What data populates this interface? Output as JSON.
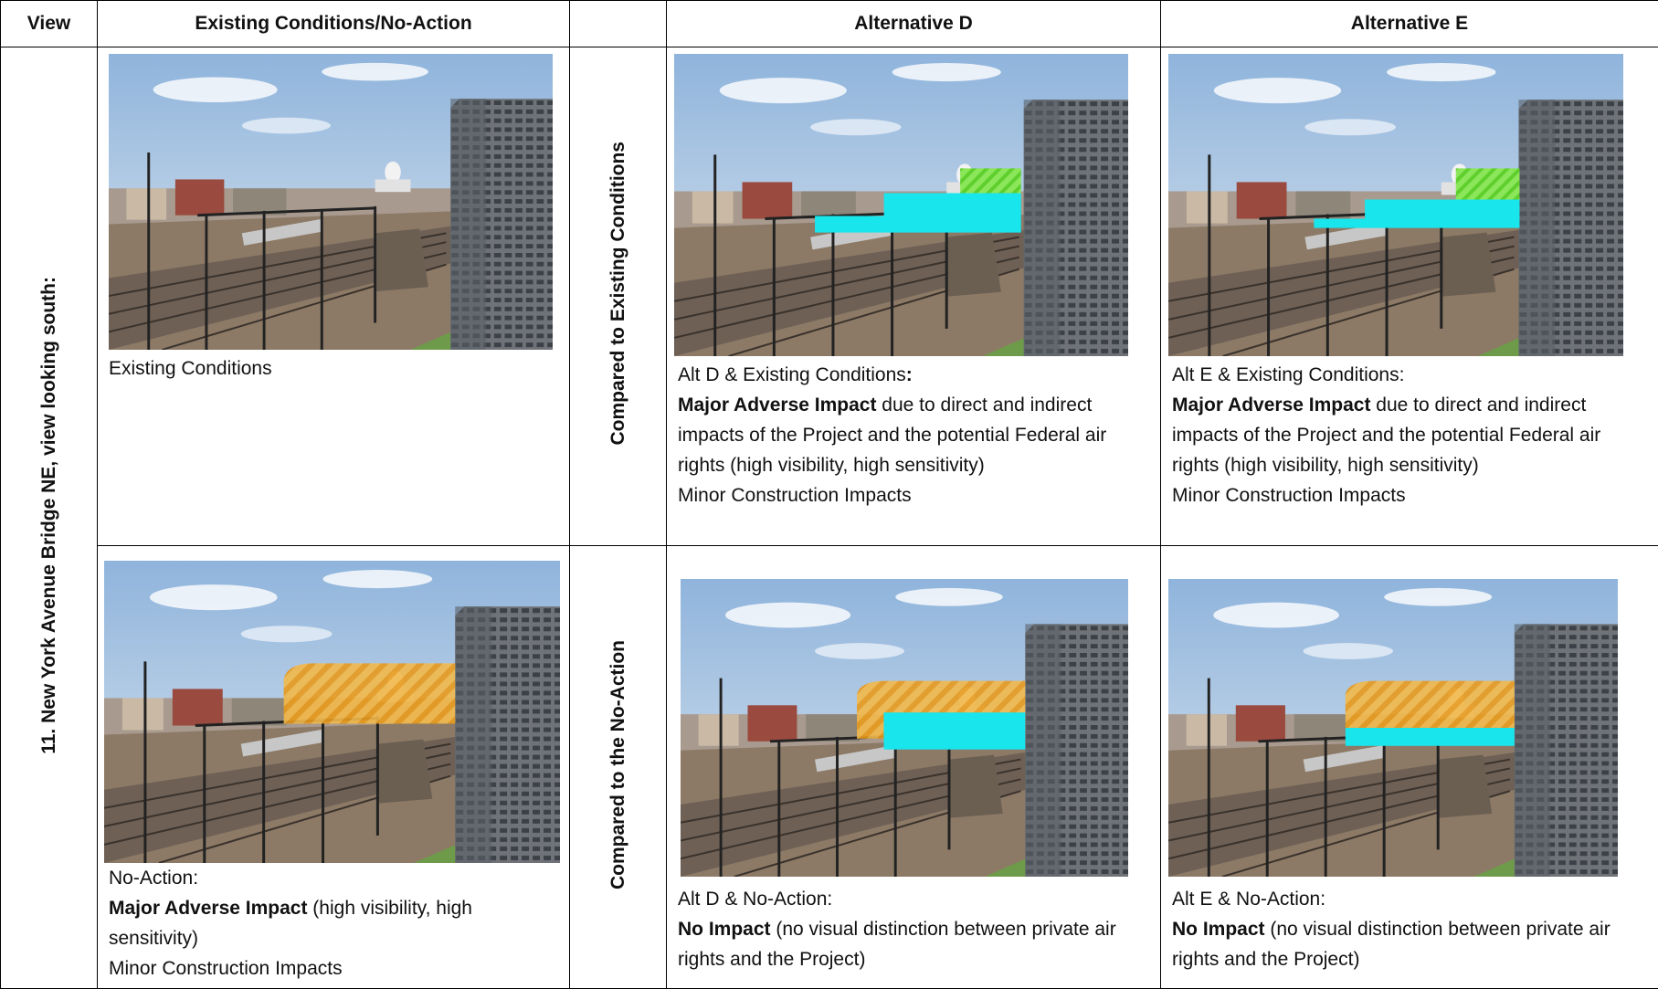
{
  "header": {
    "view": "View",
    "existing": "Existing Conditions/No-Action",
    "alt_d": "Alternative D",
    "alt_e": "Alternative E"
  },
  "view_label": "11. New York Avenue Bridge NE, view looking south:",
  "rows": [
    {
      "comparison": "Compared to Existing Conditions",
      "existing": [
        [
          {
            "text": "Existing Conditions",
            "bold": false
          }
        ]
      ],
      "alt_d": [
        [
          {
            "text": "Alt D & Existing Conditions",
            "bold": false
          },
          {
            "text": ":",
            "bold": true
          }
        ],
        [
          {
            "text": "Major Adverse Impact",
            "bold": true
          },
          {
            "text": " due to direct and indirect impacts of the Project and the potential Federal air rights (high visibility, high sensitivity)",
            "bold": false
          }
        ],
        [
          {
            "text": "Minor Construction Impacts",
            "bold": false
          }
        ]
      ],
      "alt_e": [
        [
          {
            "text": "Alt E & Existing Conditions:",
            "bold": false
          }
        ],
        [
          {
            "text": "Major Adverse Impact",
            "bold": true
          },
          {
            "text": " due to direct and indirect impacts of the Project and the potential Federal air rights (high visibility, high sensitivity)",
            "bold": false
          }
        ],
        [
          {
            "text": "Minor Construction Impacts",
            "bold": false
          }
        ]
      ]
    },
    {
      "comparison": "Compared to the No-Action",
      "existing": [
        [
          {
            "text": "No-Action:",
            "bold": false
          }
        ],
        [
          {
            "text": "Major Adverse Impact",
            "bold": true
          },
          {
            "text": " (high visibility, high sensitivity)",
            "bold": false
          }
        ],
        [
          {
            "text": "Minor Construction Impacts",
            "bold": false
          }
        ]
      ],
      "alt_d": [
        [
          {
            "text": "Alt D & No-Action:",
            "bold": false
          }
        ],
        [
          {
            "text": "No Impact",
            "bold": true
          },
          {
            "text": " (no visual distinction between private air rights and the Project)",
            "bold": false
          }
        ]
      ],
      "alt_e": [
        [
          {
            "text": "Alt E & No-Action:",
            "bold": false
          }
        ],
        [
          {
            "text": "No Impact",
            "bold": true
          },
          {
            "text": " (no visual distinction between private air rights and the Project)",
            "bold": false
          }
        ]
      ]
    }
  ]
}
